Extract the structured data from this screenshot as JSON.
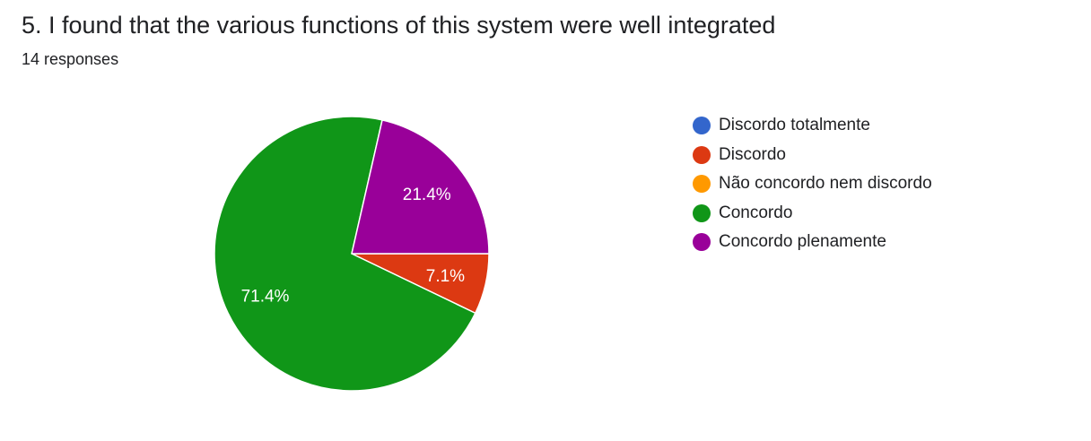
{
  "question": {
    "title": "5. I found that the various functions of this system were well integrated",
    "responses": "14 responses"
  },
  "chart_data": {
    "type": "pie",
    "total_responses": 14,
    "slices": [
      {
        "name": "Discordo totalmente",
        "value": 0,
        "percent": 0,
        "label": "",
        "color": "#3366cc"
      },
      {
        "name": "Discordo",
        "value": 1,
        "percent": 7.1,
        "label": "7.1%",
        "color": "#dc3912"
      },
      {
        "name": "Não concordo nem discordo",
        "value": 0,
        "percent": 0,
        "label": "",
        "color": "#ff9900"
      },
      {
        "name": "Concordo",
        "value": 10,
        "percent": 71.4,
        "label": "71.4%",
        "color": "#109618"
      },
      {
        "name": "Concordo plenamente",
        "value": 3,
        "percent": 21.4,
        "label": "21.4%",
        "color": "#990099"
      }
    ],
    "legend_position": "right"
  }
}
